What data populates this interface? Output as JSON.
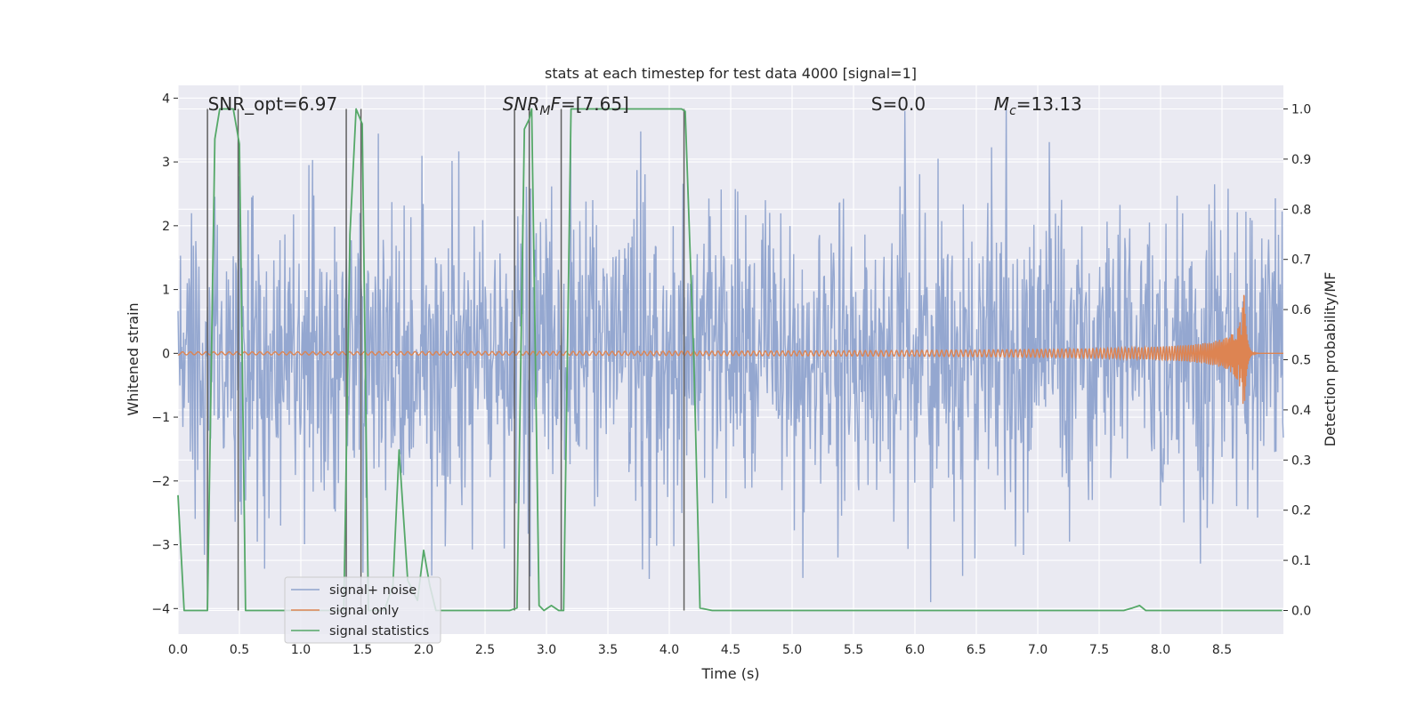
{
  "chart_data": {
    "type": "line",
    "title": "stats at each timestep for test data 4000 [signal=1]",
    "xlabel": "Time (s)",
    "ylabel": "Whitened strain",
    "y2label": "Detection probability/MF",
    "xlim": [
      0.0,
      9.0
    ],
    "ylim": [
      -4.4,
      4.2
    ],
    "y2lim": [
      -0.047,
      1.047
    ],
    "xticks": [
      "0.0",
      "0.5",
      "1.0",
      "1.5",
      "2.0",
      "2.5",
      "3.0",
      "3.5",
      "4.0",
      "4.5",
      "5.0",
      "5.5",
      "6.0",
      "6.5",
      "7.0",
      "7.5",
      "8.0",
      "8.5"
    ],
    "yticks": [
      "−4",
      "−3",
      "−2",
      "−1",
      "0",
      "1",
      "2",
      "3",
      "4"
    ],
    "y2ticks": [
      "0.0",
      "0.1",
      "0.2",
      "0.3",
      "0.4",
      "0.5",
      "0.6",
      "0.7",
      "0.8",
      "0.9",
      "1.0"
    ],
    "grid": true,
    "legend_position": "lower-left",
    "annotations": [
      {
        "text": "SNR_opt=6.97",
        "x": 0.2
      },
      {
        "text": "SNR_MF=[7.65]",
        "x": 2.6
      },
      {
        "text": "S=0.0",
        "x": 5.6
      },
      {
        "text": "M_c=13.13",
        "x": 6.6
      }
    ],
    "series": [
      {
        "name": "signal+ noise",
        "color": "#8fa3cd",
        "description": "whitened noisy strain, roughly +/-1.5 typical amplitude with spikes to +/-3.8 across 0-9 s"
      },
      {
        "name": "signal only",
        "color": "#dd8452",
        "description": "chirp signal, near zero until ~4 s, growing oscillation peaking about +/-1.2 at 8.68 s then ringdown"
      },
      {
        "name": "signal statistics",
        "color": "#55a868",
        "x": [
          0.0,
          0.05,
          0.24,
          0.3,
          0.34,
          0.4,
          0.45,
          0.5,
          0.55,
          1.35,
          1.4,
          1.45,
          1.5,
          1.55,
          1.68,
          1.75,
          1.8,
          1.87,
          1.95,
          2.0,
          2.05,
          2.1,
          2.7,
          2.76,
          2.82,
          2.86,
          2.88,
          2.94,
          2.98,
          3.04,
          3.1,
          3.14,
          3.2,
          4.0,
          4.05,
          4.1,
          4.13,
          4.2,
          4.25,
          4.35,
          6.0,
          7.7,
          7.77,
          7.83,
          7.88,
          7.94,
          8.99
        ],
        "y": [
          0.23,
          0.0,
          0.0,
          0.94,
          1.0,
          1.0,
          1.0,
          0.93,
          0.0,
          0.0,
          0.75,
          1.0,
          0.97,
          0.0,
          0.0,
          0.05,
          0.32,
          0.06,
          0.02,
          0.12,
          0.05,
          0.0,
          0.0,
          0.005,
          0.96,
          0.98,
          1.0,
          0.01,
          0.0,
          0.01,
          0.0,
          0.0,
          1.0,
          1.0,
          1.0,
          1.0,
          0.995,
          0.5,
          0.005,
          0.0,
          0.0,
          0.0,
          0.005,
          0.01,
          0.0,
          0.0,
          0.0
        ]
      }
    ],
    "vlines_x": [
      0.24,
      0.49,
      1.37,
      1.49,
      2.74,
      2.86,
      3.12,
      4.12
    ],
    "vline_color": "#606060"
  }
}
